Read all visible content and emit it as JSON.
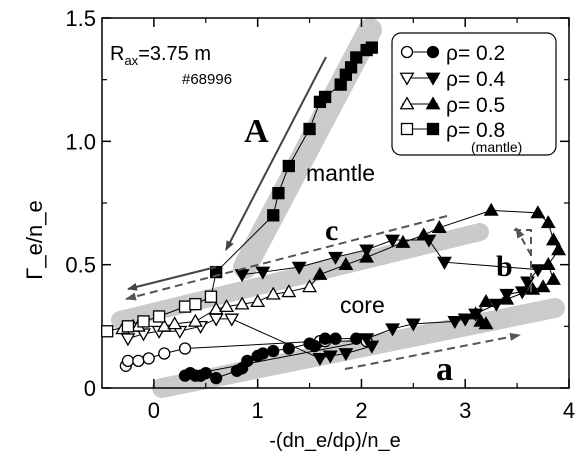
{
  "chart_data": {
    "type": "scatter",
    "title": "",
    "xlabel": "-(dn_e/dρ)/n_e",
    "ylabel": "Γ_e/n_e",
    "xlim": [
      -0.5,
      4.0
    ],
    "ylim": [
      0.0,
      1.5
    ],
    "xticks": [
      0,
      1,
      2,
      3,
      4
    ],
    "yticks": [
      0,
      0.5,
      1.0,
      1.5
    ],
    "xtick_labels": [
      "0",
      "1",
      "2",
      "3",
      "4"
    ],
    "ytick_labels": [
      "0",
      "0.5",
      "1.0",
      "1.5"
    ],
    "grid": false,
    "legend_position": "top-right",
    "annotations": {
      "rax_label": "R",
      "rax_sub": "ax",
      "rax_value": "=3.75 m",
      "shot": "#68996",
      "mantle": "mantle",
      "core": "core",
      "A": "A",
      "a": "a",
      "b": "b",
      "c": "c"
    },
    "series": [
      {
        "name": "ρ= 0.2",
        "marker": "circle",
        "hollow": [
          [
            -0.27,
            0.09
          ],
          [
            -0.25,
            0.11
          ],
          [
            -0.15,
            0.11
          ],
          [
            -0.05,
            0.12
          ],
          [
            0.1,
            0.14
          ],
          [
            0.3,
            0.16
          ],
          [
            1.6,
            0.19
          ],
          [
            1.65,
            0.19
          ],
          [
            2.05,
            0.19
          ]
        ],
        "filled": [
          [
            0.3,
            0.05
          ],
          [
            0.35,
            0.06
          ],
          [
            0.4,
            0.05
          ],
          [
            0.45,
            0.05
          ],
          [
            0.5,
            0.06
          ],
          [
            0.6,
            0.04
          ],
          [
            0.8,
            0.07
          ],
          [
            0.85,
            0.08
          ],
          [
            0.9,
            0.11
          ],
          [
            1.0,
            0.13
          ],
          [
            1.05,
            0.14
          ],
          [
            1.15,
            0.15
          ],
          [
            1.3,
            0.16
          ],
          [
            1.5,
            0.18
          ],
          [
            1.55,
            0.17
          ],
          [
            1.65,
            0.2
          ],
          [
            1.75,
            0.2
          ],
          [
            1.95,
            0.2
          ]
        ]
      },
      {
        "name": "ρ= 0.4",
        "marker": "triangle-down",
        "hollow": [
          [
            -0.25,
            0.2
          ],
          [
            -0.1,
            0.22
          ],
          [
            0.05,
            0.23
          ],
          [
            0.25,
            0.23
          ],
          [
            0.45,
            0.25
          ],
          [
            0.6,
            0.28
          ],
          [
            0.75,
            0.28
          ]
        ],
        "filled": [
          [
            1.6,
            0.12
          ],
          [
            1.7,
            0.13
          ],
          [
            1.85,
            0.14
          ],
          [
            2.1,
            0.17
          ],
          [
            2.05,
            0.2
          ],
          [
            2.3,
            0.24
          ],
          [
            2.5,
            0.26
          ],
          [
            2.9,
            0.27
          ],
          [
            3.0,
            0.28
          ],
          [
            3.1,
            0.3
          ],
          [
            3.3,
            0.34
          ],
          [
            3.4,
            0.38
          ],
          [
            3.55,
            0.39
          ],
          [
            3.6,
            0.43
          ],
          [
            3.7,
            0.48
          ],
          [
            2.8,
            0.51
          ],
          [
            2.65,
            0.6
          ],
          [
            2.3,
            0.6
          ],
          [
            2.05,
            0.56
          ],
          [
            1.75,
            0.53
          ],
          [
            1.4,
            0.49
          ],
          [
            1.05,
            0.47
          ],
          [
            0.85,
            0.46
          ]
        ]
      },
      {
        "name": "ρ= 0.5",
        "marker": "triangle-up",
        "hollow": [
          [
            -0.3,
            0.24
          ],
          [
            -0.2,
            0.25
          ],
          [
            -0.15,
            0.25
          ],
          [
            0.1,
            0.25
          ],
          [
            0.2,
            0.26
          ],
          [
            0.4,
            0.27
          ],
          [
            0.6,
            0.32
          ],
          [
            0.7,
            0.33
          ],
          [
            0.85,
            0.34
          ],
          [
            1.0,
            0.35
          ],
          [
            1.15,
            0.38
          ],
          [
            1.3,
            0.39
          ],
          [
            1.5,
            0.41
          ]
        ],
        "filled": [
          [
            1.6,
            0.46
          ],
          [
            1.85,
            0.5
          ],
          [
            2.05,
            0.53
          ],
          [
            2.4,
            0.59
          ],
          [
            2.6,
            0.62
          ],
          [
            2.75,
            0.65
          ],
          [
            3.25,
            0.72
          ],
          [
            3.7,
            0.71
          ],
          [
            3.8,
            0.67
          ],
          [
            3.85,
            0.6
          ],
          [
            3.9,
            0.56
          ],
          [
            3.8,
            0.5
          ],
          [
            3.85,
            0.44
          ],
          [
            3.75,
            0.41
          ],
          [
            3.65,
            0.4
          ],
          [
            3.4,
            0.36
          ],
          [
            3.2,
            0.35
          ],
          [
            3.1,
            0.3
          ],
          [
            3.15,
            0.27
          ],
          [
            3.2,
            0.26
          ]
        ]
      },
      {
        "name": "ρ= 0.8",
        "sublabel": "(mantle)",
        "marker": "square",
        "hollow": [
          [
            -0.45,
            0.23
          ],
          [
            -0.25,
            0.25
          ],
          [
            -0.1,
            0.27
          ],
          [
            0.05,
            0.29
          ],
          [
            0.3,
            0.33
          ],
          [
            0.4,
            0.34
          ],
          [
            0.55,
            0.37
          ]
        ],
        "filled": [
          [
            0.6,
            0.47
          ],
          [
            1.15,
            0.7
          ],
          [
            1.2,
            0.79
          ],
          [
            1.3,
            0.9
          ],
          [
            1.5,
            1.05
          ],
          [
            1.6,
            1.16
          ],
          [
            1.65,
            1.18
          ],
          [
            1.8,
            1.23
          ],
          [
            1.85,
            1.27
          ],
          [
            1.9,
            1.3
          ],
          [
            1.95,
            1.34
          ],
          [
            2.05,
            1.37
          ],
          [
            2.1,
            1.38
          ]
        ]
      }
    ]
  }
}
